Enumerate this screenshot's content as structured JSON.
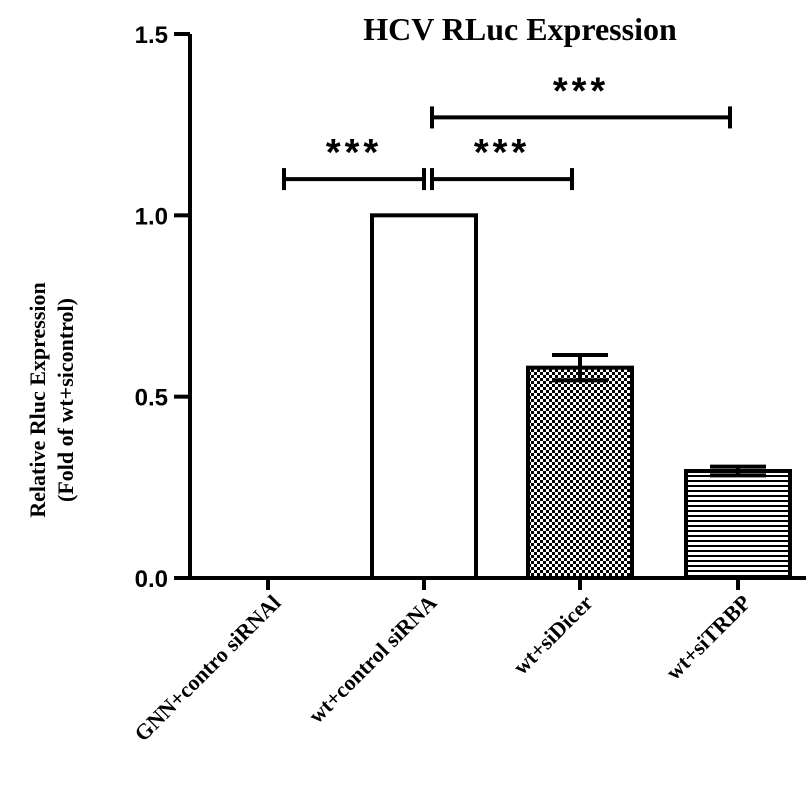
{
  "chart_data": {
    "type": "bar",
    "title": "HCV RLuc Expression",
    "ylabel_lines": [
      "Relative Rluc Expression",
      "(Fold of wt+sicontrol)"
    ],
    "xlabel": "",
    "ylim": [
      0,
      1.5
    ],
    "yticks": [
      "0.0",
      "0.5",
      "1.0",
      "1.5"
    ],
    "categories": [
      "GNN+contro siRNAl",
      "wt+control siRNA",
      "wt+siDicer",
      "wt+siTRBP"
    ],
    "values": [
      0.0,
      1.0,
      0.58,
      0.295
    ],
    "errors": [
      0,
      0,
      0.035,
      0.012
    ],
    "fills": [
      "none",
      "none",
      "checker",
      "hlines"
    ],
    "significance": [
      {
        "from": 0,
        "to": 1,
        "y": 1.1,
        "label": "***"
      },
      {
        "from": 1,
        "to": 2,
        "y": 1.1,
        "label": "***"
      },
      {
        "from": 1,
        "to": 3,
        "y": 1.27,
        "label": "***"
      }
    ],
    "grid": false,
    "legend": "none"
  }
}
